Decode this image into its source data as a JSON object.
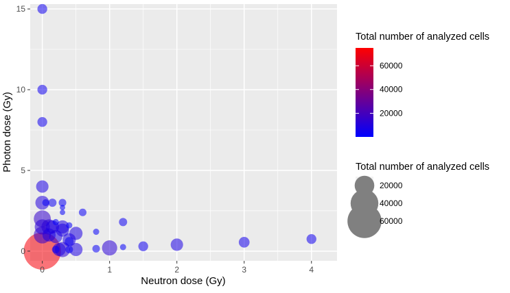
{
  "chart_data": {
    "type": "scatter",
    "xlabel": "Neutron dose (Gy)",
    "ylabel": "Photon dose (Gy)",
    "xlim": [
      -0.18,
      4.38
    ],
    "ylim": [
      -0.6,
      15.3
    ],
    "x_ticks": [
      0,
      1,
      2,
      3,
      4
    ],
    "y_ticks": [
      0,
      5,
      10,
      15
    ],
    "grid": true,
    "panel_background": "#ebebeb",
    "grid_color": "#ffffff",
    "color_legend": {
      "title": "Total number of analyzed cells",
      "low_color": "#0000ff",
      "high_color": "#ff0000",
      "min": 100,
      "max": 75000,
      "breaks": [
        20000,
        40000,
        60000
      ]
    },
    "size_legend": {
      "title": "Total number of analyzed cells",
      "breaks": [
        20000,
        40000,
        60000
      ],
      "point_color": "#808080"
    },
    "point_opacity": 0.55,
    "points": [
      {
        "x": 0,
        "y": 15,
        "cells": 5000
      },
      {
        "x": 0,
        "y": 10,
        "cells": 5000
      },
      {
        "x": 0,
        "y": 8,
        "cells": 5000
      },
      {
        "x": 0,
        "y": 4,
        "cells": 8000
      },
      {
        "x": 0,
        "y": 3,
        "cells": 10000
      },
      {
        "x": 0.05,
        "y": 3,
        "cells": 2500
      },
      {
        "x": 0.15,
        "y": 3,
        "cells": 3500
      },
      {
        "x": 0.3,
        "y": 3,
        "cells": 3000
      },
      {
        "x": 0.3,
        "y": 2.7,
        "cells": 1500
      },
      {
        "x": 0.3,
        "y": 2.4,
        "cells": 1500
      },
      {
        "x": 0.6,
        "y": 2.4,
        "cells": 3000
      },
      {
        "x": 0,
        "y": 2,
        "cells": 15000
      },
      {
        "x": 0.2,
        "y": 1.8,
        "cells": 2000
      },
      {
        "x": 0,
        "y": 1.5,
        "cells": 12000
      },
      {
        "x": 0.1,
        "y": 1.5,
        "cells": 12000
      },
      {
        "x": 0.15,
        "y": 1.5,
        "cells": 9000
      },
      {
        "x": 0.3,
        "y": 1.5,
        "cells": 9000
      },
      {
        "x": 0.4,
        "y": 1.6,
        "cells": 2000
      },
      {
        "x": 1.2,
        "y": 1.8,
        "cells": 3500
      },
      {
        "x": 0.3,
        "y": 1.3,
        "cells": 9000
      },
      {
        "x": 0.5,
        "y": 1.1,
        "cells": 9000
      },
      {
        "x": 0.8,
        "y": 1.2,
        "cells": 2000
      },
      {
        "x": 0,
        "y": 1,
        "cells": 15000
      },
      {
        "x": 0.1,
        "y": 1,
        "cells": 9000
      },
      {
        "x": 0.2,
        "y": 0.9,
        "cells": 9000
      },
      {
        "x": 0.4,
        "y": 0.7,
        "cells": 9000
      },
      {
        "x": 0.4,
        "y": 0.6,
        "cells": 4000
      },
      {
        "x": 1.2,
        "y": 0.25,
        "cells": 2000
      },
      {
        "x": 1.5,
        "y": 0.3,
        "cells": 5000
      },
      {
        "x": 2,
        "y": 0.4,
        "cells": 8000
      },
      {
        "x": 3,
        "y": 0.55,
        "cells": 6000
      },
      {
        "x": 4,
        "y": 0.75,
        "cells": 5000
      },
      {
        "x": 0.2,
        "y": 0.1,
        "cells": 3000
      },
      {
        "x": 0.25,
        "y": 0.1,
        "cells": 9000
      },
      {
        "x": 0.3,
        "y": 0.1,
        "cells": 12000
      },
      {
        "x": 0.4,
        "y": 0.1,
        "cells": 3000
      },
      {
        "x": 0.5,
        "y": 0.1,
        "cells": 9000
      },
      {
        "x": 0.8,
        "y": 0.15,
        "cells": 3000
      },
      {
        "x": 1,
        "y": 0.2,
        "cells": 12000
      },
      {
        "x": 0,
        "y": 0,
        "cells": 72000
      }
    ]
  }
}
